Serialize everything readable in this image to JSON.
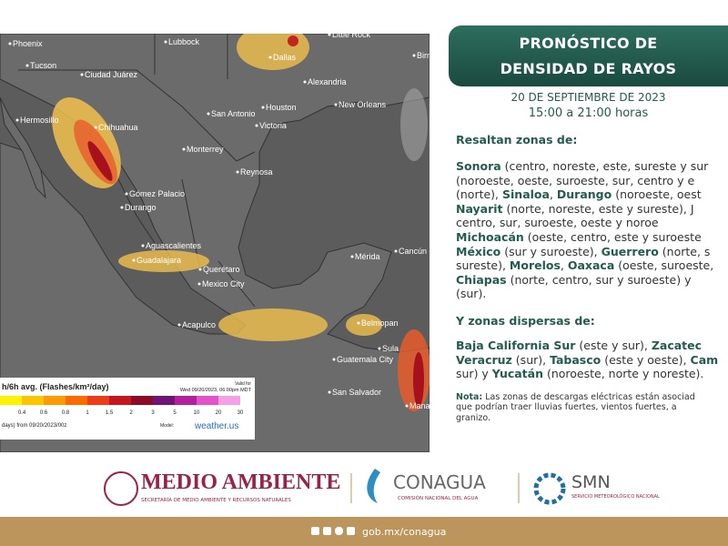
{
  "map": {
    "cities": [
      "Phoenix",
      "Lubbock",
      "Little Rock",
      "Tucson",
      "Dallas",
      "Birn",
      "Ciudad Juárez",
      "Alexandria",
      "Hermosillo",
      "Chihuahua",
      "San Antonio",
      "Houston",
      "New Orleans",
      "Victoria",
      "Monterrey",
      "Reynosa",
      "Gómez Palacio",
      "Durango",
      "Aguascalientes",
      "Querétaro",
      "Guadalajara",
      "Mexico City",
      "Mérida",
      "Cancún",
      "Acapulco",
      "Belmopan",
      "Guatemala City",
      "Sula",
      "San Salvador",
      "Manag"
    ],
    "legend": {
      "title": "h/6h avg. (Flashes/km²/day)",
      "valid": "Valid for",
      "valid_time": "Wed 09/20/2023, 06:00pm MDT",
      "values": [
        "0.4",
        "0.6",
        "0.8",
        "1",
        "1.5",
        "2",
        "3",
        "5",
        "10",
        "20",
        "30"
      ],
      "footer": "days) from 09/20/2023/00z",
      "model": "Model:",
      "brand": "weather.us"
    }
  },
  "panel": {
    "title": [
      "PRONÓSTICO DE",
      "DENSIDAD DE RAYOS"
    ],
    "date": "20 DE SEPTIEMBRE DE 2023",
    "time": "15:00 a 21:00 horas",
    "intro": "Resaltan zonas de:",
    "lines": [
      [
        {
          "text": "Sonora",
          "bold": true
        },
        {
          "text": " (centro, noreste, este, sureste y sur"
        }
      ],
      [
        {
          "text": "(noroeste, oeste, suroeste, sur, centro y e"
        }
      ],
      [
        {
          "text": "(norte), "
        },
        {
          "text": "Sinaloa",
          "bold": true
        },
        {
          "text": ", "
        },
        {
          "text": "Durango",
          "bold": true
        },
        {
          "text": " (noroeste, oest"
        }
      ],
      [
        {
          "text": "Nayarit",
          "bold": true
        },
        {
          "text": " (norte, noreste, este y sureste), J"
        }
      ],
      [
        {
          "text": "centro, sur, suroeste, oeste y noroe"
        }
      ],
      [
        {
          "text": "Michoacán",
          "bold": true
        },
        {
          "text": " (oeste, centro, este y suroeste"
        }
      ],
      [
        {
          "text": "México",
          "bold": true
        },
        {
          "text": " (sur y suroeste), "
        },
        {
          "text": "Guerrero",
          "bold": true
        },
        {
          "text": " (norte, s"
        }
      ],
      [
        {
          "text": "sureste), "
        },
        {
          "text": "Morelos",
          "bold": true
        },
        {
          "text": ", "
        },
        {
          "text": "Oaxaca",
          "bold": true
        },
        {
          "text": " (oeste, suroeste,"
        }
      ],
      [
        {
          "text": "Chiapas",
          "bold": true
        },
        {
          "text": " (norte, centro, sur y suroeste) y"
        }
      ],
      [
        {
          "text": "(sur)."
        }
      ]
    ],
    "intro2": "Y zonas dispersas de:",
    "lines2": [
      [
        {
          "text": "Baja California Sur",
          "bold": true
        },
        {
          "text": " (este y sur), "
        },
        {
          "text": "Zacatec",
          "bold": true
        }
      ],
      [
        {
          "text": "Veracruz",
          "bold": true
        },
        {
          "text": " (sur), "
        },
        {
          "text": "Tabasco",
          "bold": true
        },
        {
          "text": " (este y oeste), "
        },
        {
          "text": "Cam",
          "bold": true
        }
      ],
      [
        {
          "text": "sur) y "
        },
        {
          "text": "Yucatán",
          "bold": true
        },
        {
          "text": " (noroeste, norte y noreste)."
        }
      ]
    ],
    "note": [
      [
        {
          "text": "Nota:",
          "bold": true
        },
        {
          "text": " Las zonas de descargas eléctricas están asociad"
        }
      ],
      [
        {
          "text": "que podrían traer lluvias fuertes, vientos fuertes, a"
        }
      ],
      [
        {
          "text": "granizo."
        }
      ]
    ]
  },
  "footer": {
    "semarnat": "MEDIO AMBIENTE",
    "semarnat_sub": "SECRETARÍA DE MEDIO AMBIENTE Y RECURSOS NATURALES",
    "conagua": "CONAGUA",
    "conagua_sub": "COMISIÓN NACIONAL DEL AGUA",
    "smn": "SMN",
    "smn_sub": "SERVICIO METEOROLÓGICO NACIONAL",
    "url": "gob.mx/conagua"
  }
}
